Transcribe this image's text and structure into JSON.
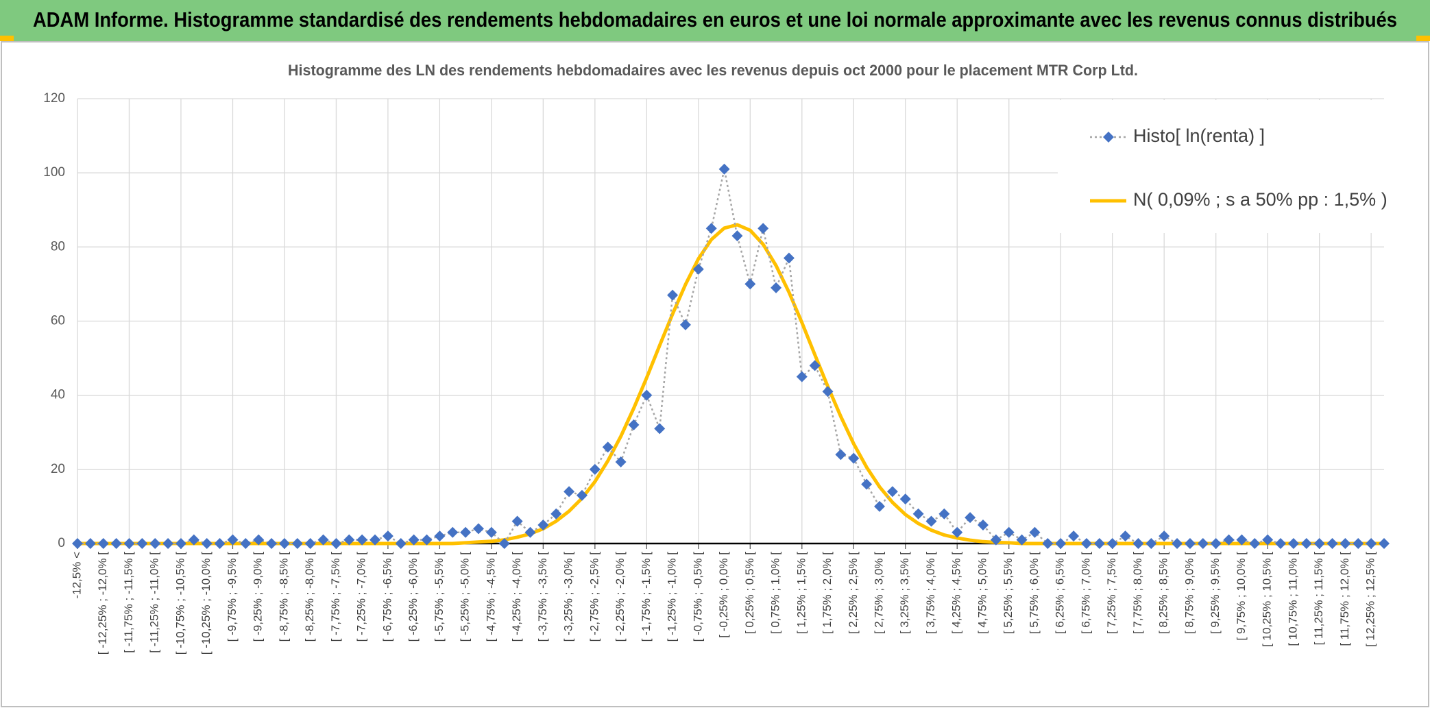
{
  "header": {
    "title": "ADAM Informe. Histogramme standardisé des rendements hebdomadaires en euros et une loi normale approximante avec les revenus connus distribués"
  },
  "chart_data": {
    "type": "line",
    "title": "Histogramme des LN des rendements hebdomadaires avec les revenus depuis oct 2000 pour le placement MTR Corp Ltd.",
    "categories": [
      "-12,5% <",
      null,
      "[ -12,25% ; -12,0% [",
      null,
      "[ -11,75% ; -11,5% [",
      null,
      "[ -11,25% ; -11,0% [",
      null,
      "[ -10,75% ; -10,5% [",
      null,
      "[ -10,25% ; -10,0% [",
      null,
      "[ -9,75% ; -9,5% [",
      null,
      "[ -9,25% ; -9,0% [",
      null,
      "[ -8,75% ; -8,5% [",
      null,
      "[ -8,25% ; -8,0% [",
      null,
      "[ -7,75% ; -7,5% [",
      null,
      "[ -7,25% ; -7,0% [",
      null,
      "[ -6,75% ; -6,5% [",
      null,
      "[ -6,25% ; -6,0% [",
      null,
      "[ -5,75% ; -5,5% [",
      null,
      "[ -5,25% ; -5,0% [",
      null,
      "[ -4,75% ; -4,5% [",
      null,
      "[ -4,25% ; -4,0% [",
      null,
      "[ -3,75% ; -3,5% [",
      null,
      "[ -3,25% ; -3,0% [",
      null,
      "[ -2,75% ; -2,5% [",
      null,
      "[ -2,25% ; -2,0% [",
      null,
      "[ -1,75% ; -1,5% [",
      null,
      "[ -1,25% ; -1,0% [",
      null,
      "[ -0,75% ; -0,5% [",
      null,
      "[ -0,25% ; 0,0% [",
      null,
      "[ 0,25% ; 0,5% [",
      null,
      "[ 0,75% ; 1,0% [",
      null,
      "[ 1,25% ; 1,5% [",
      null,
      "[ 1,75% ; 2,0% [",
      null,
      "[ 2,25% ; 2,5% [",
      null,
      "[ 2,75% ; 3,0% [",
      null,
      "[ 3,25% ; 3,5% [",
      null,
      "[ 3,75% ; 4,0% [",
      null,
      "[ 4,25% ; 4,5% [",
      null,
      "[ 4,75% ; 5,0% [",
      null,
      "[ 5,25% ; 5,5% [",
      null,
      "[ 5,75% ; 6,0% [",
      null,
      "[ 6,25% ; 6,5% [",
      null,
      "[ 6,75% ; 7,0% [",
      null,
      "[ 7,25% ; 7,5% [",
      null,
      "[ 7,75% ; 8,0% [",
      null,
      "[ 8,25% ; 8,5% [",
      null,
      "[ 8,75% ; 9,0% [",
      null,
      "[ 9,25% ; 9,5% [",
      null,
      "[ 9,75% ; 10,0% [",
      null,
      "[ 10,25% ; 10,5% [",
      null,
      "[ 10,75% ; 11,0% [",
      null,
      "[ 11,25% ; 11,5% [",
      null,
      "[ 11,75% ; 12,0% [",
      null,
      "[ 12,25% ; 12,5% [",
      null
    ],
    "series": [
      {
        "name": "Histo[ ln(renta) ]",
        "color": "#4472c4",
        "line_color": "#a5a5a5",
        "values": [
          0,
          0,
          0,
          0,
          0,
          0,
          0,
          0,
          0,
          1,
          0,
          0,
          1,
          0,
          1,
          0,
          0,
          0,
          0,
          1,
          0,
          1,
          1,
          1,
          2,
          0,
          1,
          1,
          2,
          3,
          3,
          4,
          3,
          0,
          6,
          3,
          5,
          8,
          14,
          13,
          20,
          26,
          22,
          32,
          40,
          31,
          67,
          59,
          74,
          85,
          101,
          83,
          70,
          85,
          69,
          77,
          45,
          48,
          41,
          24,
          23,
          16,
          10,
          14,
          12,
          8,
          6,
          8,
          3,
          7,
          5,
          1,
          3,
          1,
          3,
          0,
          0,
          2,
          0,
          0,
          0,
          2,
          0,
          0,
          2,
          0,
          0,
          0,
          0,
          1,
          1,
          0,
          1,
          0,
          0,
          0,
          0,
          0,
          0,
          0,
          0,
          0
        ]
      },
      {
        "name": "N( 0,09% ; s a 50% pp : 1,5% )",
        "color": "#ffc000",
        "values": [
          0,
          0,
          0,
          0,
          0,
          0,
          0,
          0,
          0,
          0,
          0,
          0,
          0,
          0,
          0,
          0,
          0,
          0,
          0,
          0,
          0,
          0,
          0,
          0,
          0,
          0,
          0,
          0,
          0,
          0,
          0.2,
          0.4,
          0.6,
          1.0,
          1.7,
          2.6,
          4.0,
          6.0,
          8.7,
          12.2,
          16.7,
          22.3,
          28.9,
          36.5,
          44.7,
          53.4,
          61.9,
          69.9,
          76.8,
          82.0,
          85.1,
          86.0,
          84.5,
          80.7,
          75.0,
          67.8,
          59.6,
          50.9,
          42.4,
          34.3,
          26.9,
          20.6,
          15.3,
          11.1,
          7.8,
          5.4,
          3.6,
          2.3,
          1.5,
          0.9,
          0.5,
          0.3,
          0.2,
          0,
          0,
          0,
          0,
          0,
          0,
          0,
          0,
          0,
          0,
          0,
          0,
          0,
          0,
          0,
          0,
          0,
          0,
          0,
          0,
          0,
          0,
          0,
          0,
          0,
          0,
          0,
          0,
          0
        ]
      }
    ],
    "ylim": [
      0,
      120
    ],
    "yticks": [
      0,
      20,
      40,
      60,
      80,
      100,
      120
    ],
    "grid": true,
    "legend": "upper right"
  }
}
